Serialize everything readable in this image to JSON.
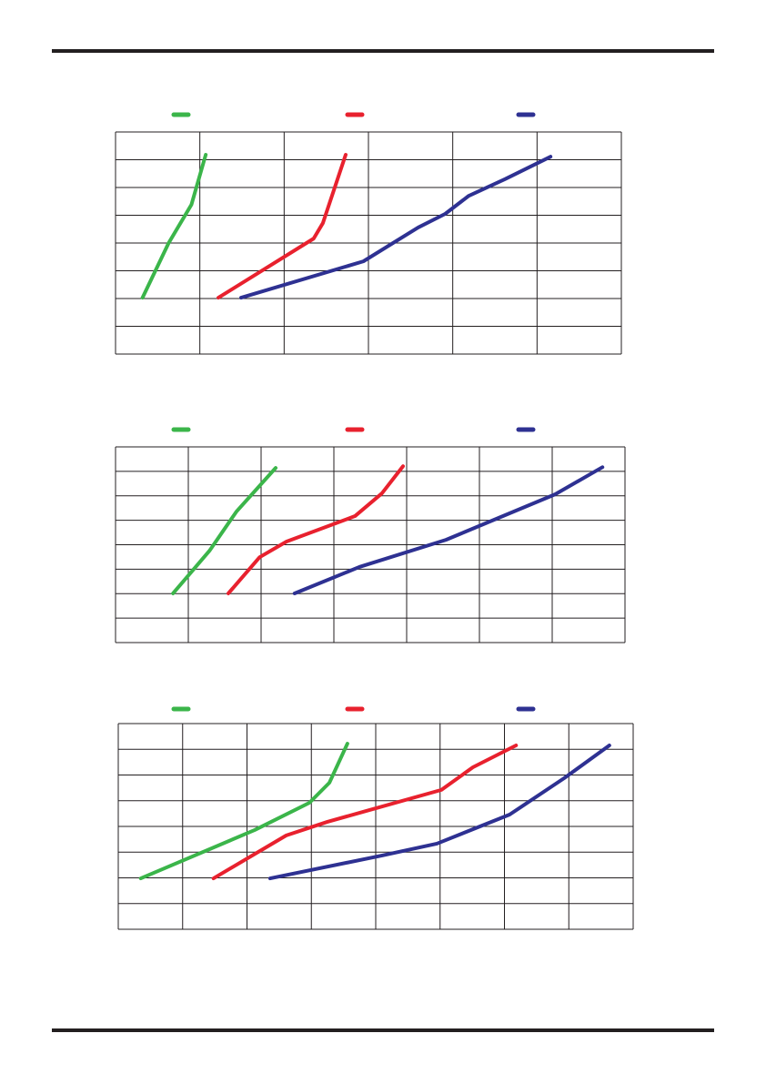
{
  "chart_data": [
    {
      "type": "line",
      "xlim": [
        0,
        6
      ],
      "ylim": [
        0,
        8
      ],
      "xticks": [
        0,
        1,
        2,
        3,
        4,
        5,
        6
      ],
      "yticks": [
        0,
        1,
        2,
        3,
        4,
        5,
        6,
        7,
        8
      ],
      "grid": true,
      "series": [
        {
          "color": "#3bb54a",
          "x": [
            0.32,
            0.63,
            0.9,
            1.07
          ],
          "values": [
            2.03,
            4.0,
            5.38,
            7.18
          ]
        },
        {
          "color": "#e8212e",
          "x": [
            1.22,
            2.35,
            2.46,
            2.73
          ],
          "values": [
            2.03,
            4.16,
            4.72,
            7.18
          ]
        },
        {
          "color": "#2e3192",
          "x": [
            1.49,
            2.94,
            3.59,
            3.91,
            4.19,
            4.62,
            5.16
          ],
          "values": [
            2.03,
            3.34,
            4.56,
            5.05,
            5.7,
            6.3,
            7.11
          ]
        }
      ]
    },
    {
      "type": "line",
      "xlim": [
        0,
        7
      ],
      "ylim": [
        0,
        8
      ],
      "xticks": [
        0,
        1,
        2,
        3,
        4,
        5,
        6,
        7
      ],
      "yticks": [
        0,
        1,
        2,
        3,
        4,
        5,
        6,
        7,
        8
      ],
      "grid": true,
      "series": [
        {
          "color": "#3bb54a",
          "x": [
            0.79,
            1.29,
            1.66,
            2.2
          ],
          "values": [
            2.01,
            3.75,
            5.35,
            7.14
          ]
        },
        {
          "color": "#e8212e",
          "x": [
            1.55,
            1.98,
            2.35,
            3.29,
            3.66,
            3.95
          ],
          "values": [
            2.01,
            3.49,
            4.13,
            5.17,
            6.1,
            7.21
          ]
        },
        {
          "color": "#2e3192",
          "x": [
            2.46,
            3.35,
            4.54,
            6.04,
            6.69
          ],
          "values": [
            2.01,
            3.09,
            4.2,
            6.06,
            7.17
          ]
        }
      ]
    },
    {
      "type": "line",
      "xlim": [
        0,
        8
      ],
      "ylim": [
        0,
        8
      ],
      "xticks": [
        0,
        1,
        2,
        3,
        4,
        5,
        6,
        7,
        8
      ],
      "yticks": [
        0,
        1,
        2,
        3,
        4,
        5,
        6,
        7,
        8
      ],
      "grid": true,
      "series": [
        {
          "color": "#3bb54a",
          "x": [
            0.35,
            2.12,
            2.97,
            3.28,
            3.56
          ],
          "values": [
            1.98,
            3.86,
            4.92,
            5.7,
            7.22
          ]
        },
        {
          "color": "#e8212e",
          "x": [
            1.48,
            2.61,
            3.25,
            5.02,
            5.51,
            6.18
          ],
          "values": [
            1.98,
            3.65,
            4.18,
            5.42,
            6.3,
            7.15
          ]
        },
        {
          "color": "#2e3192",
          "x": [
            2.36,
            4.1,
            4.95,
            6.08,
            6.93,
            7.63
          ],
          "values": [
            1.98,
            2.87,
            3.33,
            4.46,
            5.88,
            7.15
          ]
        }
      ]
    }
  ]
}
